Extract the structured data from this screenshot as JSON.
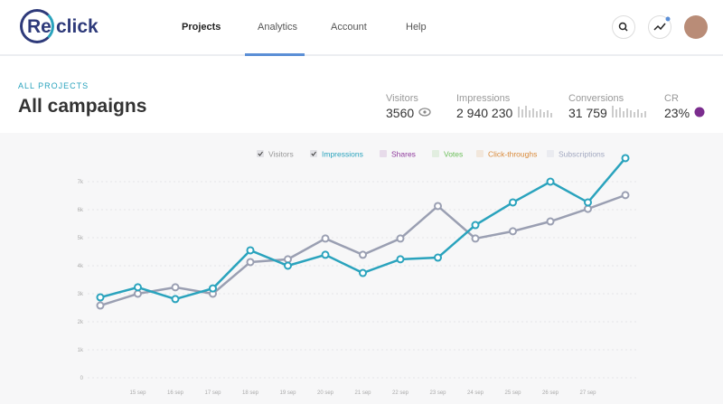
{
  "header": {
    "logo_left": "Re",
    "logo_right": "click",
    "nav": [
      "Projects",
      "Analytics",
      "Account",
      "Help"
    ]
  },
  "page": {
    "breadcrumb": "ALL PROJECTS",
    "title": "All campaigns"
  },
  "stats": [
    {
      "label": "Visitors",
      "value": "3560"
    },
    {
      "label": "Impressions",
      "value": "2 940 230"
    },
    {
      "label": "Conversions",
      "value": "31 759"
    },
    {
      "label": "CR",
      "value": "23%"
    }
  ],
  "chart_data": {
    "type": "line",
    "categories": [
      null,
      "15 sep",
      "16 sep",
      "17 sep",
      "18 sep",
      "19 sep",
      "20 sep",
      "21 sep",
      "22 sep",
      "23 sep",
      "24 sep",
      "25 sep",
      "26 sep",
      "27 sep",
      null
    ],
    "series": [
      {
        "name": "Visitors",
        "color": "#9a9fb2",
        "values": [
          2580,
          3000,
          3230,
          3000,
          4130,
          4230,
          4970,
          4390,
          4970,
          6130,
          4970,
          5230,
          5580,
          6030,
          6520
        ]
      },
      {
        "name": "Impressions",
        "color": "#2aa3bd",
        "values": [
          2870,
          3230,
          2810,
          3190,
          4550,
          4000,
          4390,
          3740,
          4230,
          4290,
          5450,
          6260,
          7000,
          6260,
          7840
        ]
      }
    ],
    "hidden_series": [
      {
        "name": "Shares",
        "color": "#8e3a9c"
      },
      {
        "name": "Votes",
        "color": "#6cbf5a"
      },
      {
        "name": "Click-throughs",
        "color": "#d98a3a"
      },
      {
        "name": "Subscriptions",
        "color": "#a2a8c0"
      }
    ],
    "ylim": [
      0,
      8000
    ],
    "yticks": [
      0,
      {
        "value": 1000,
        "label": "1k"
      },
      {
        "value": 2000,
        "label": "2k"
      },
      {
        "value": 3000,
        "label": "3k"
      },
      {
        "value": 4000,
        "label": "4k"
      },
      {
        "value": 5000,
        "label": "5k"
      },
      {
        "value": 6000,
        "label": "6k"
      },
      {
        "value": 7000,
        "label": "7k"
      }
    ],
    "grid": true
  }
}
